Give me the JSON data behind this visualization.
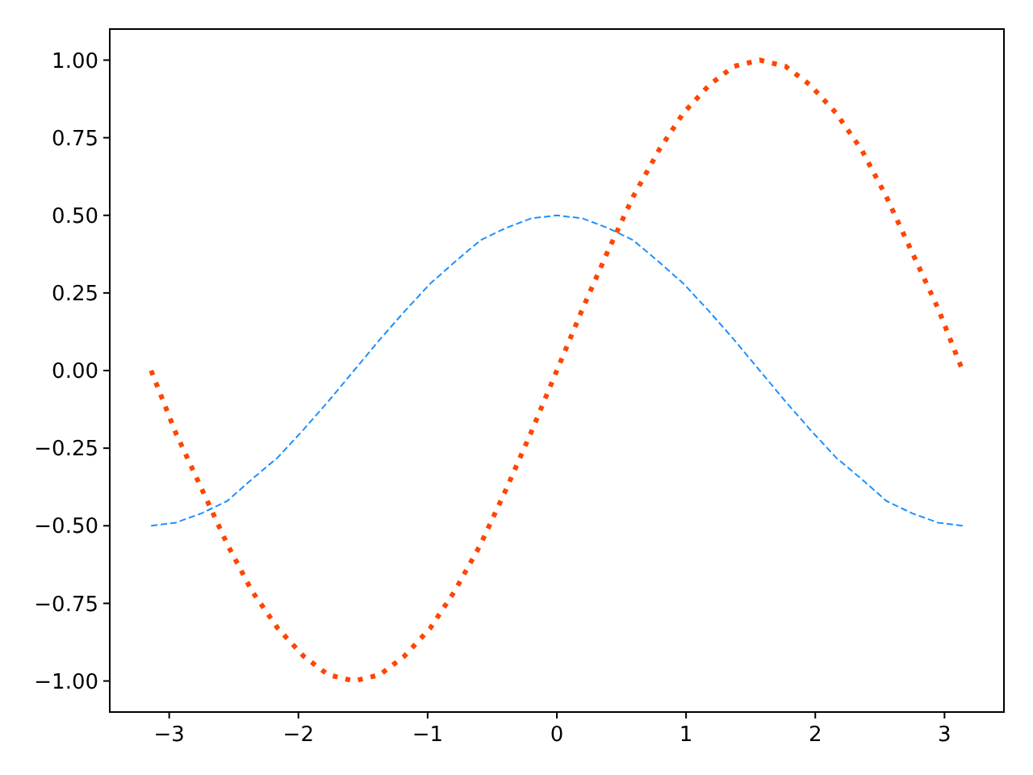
{
  "chart_data": {
    "type": "line",
    "x": [
      -3.14,
      -2.95,
      -2.75,
      -2.55,
      -2.36,
      -2.16,
      -1.96,
      -1.77,
      -1.57,
      -1.37,
      -1.18,
      -0.98,
      -0.79,
      -0.59,
      -0.39,
      -0.2,
      0,
      0.2,
      0.39,
      0.59,
      0.79,
      0.98,
      1.18,
      1.37,
      1.57,
      1.77,
      1.96,
      2.16,
      2.36,
      2.55,
      2.75,
      2.95,
      3.14
    ],
    "series": [
      {
        "color": "#1e90ff",
        "line_style": "dashed",
        "values": [
          -0.5,
          -0.49,
          -0.46,
          -0.42,
          -0.35,
          -0.28,
          -0.19,
          -0.1,
          0,
          0.1,
          0.19,
          0.28,
          0.35,
          0.42,
          0.46,
          0.49,
          0.5,
          0.49,
          0.46,
          0.42,
          0.35,
          0.28,
          0.19,
          0.1,
          0,
          -0.1,
          -0.19,
          -0.28,
          -0.35,
          -0.42,
          -0.46,
          -0.49,
          -0.5
        ]
      },
      {
        "color": "#ff4500",
        "line_style": "dotted",
        "values": [
          0,
          -0.2,
          -0.38,
          -0.56,
          -0.71,
          -0.83,
          -0.92,
          -0.98,
          -1,
          -0.98,
          -0.92,
          -0.83,
          -0.71,
          -0.56,
          -0.38,
          -0.2,
          0,
          0.2,
          0.38,
          0.56,
          0.71,
          0.83,
          0.92,
          0.98,
          1,
          0.98,
          0.92,
          0.83,
          0.71,
          0.56,
          0.38,
          0.2,
          0
        ]
      }
    ],
    "xlim": [
      -3.46,
      3.46
    ],
    "ylim": [
      -1.1,
      1.1
    ],
    "xticks": [
      {
        "value": -3,
        "label": "−3"
      },
      {
        "value": -2,
        "label": "−2"
      },
      {
        "value": -1,
        "label": "−1"
      },
      0,
      1,
      2,
      3
    ],
    "yticks": [
      {
        "value": -1,
        "label": "−1.00"
      },
      {
        "value": -0.75,
        "label": "−0.75"
      },
      {
        "value": -0.5,
        "label": "−0.50"
      },
      {
        "value": -0.25,
        "label": "−0.25"
      },
      {
        "value": 0,
        "label": "0.00"
      },
      {
        "value": 0.25,
        "label": "0.25"
      },
      {
        "value": 0.5,
        "label": "0.50"
      },
      {
        "value": 0.75,
        "label": "0.75"
      },
      {
        "value": 1,
        "label": "1.00"
      }
    ],
    "grid": false
  }
}
